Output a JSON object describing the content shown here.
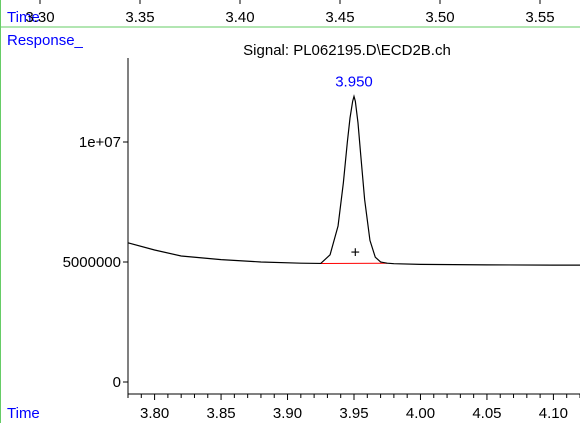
{
  "chart_data": [
    {
      "type": "line",
      "title": "",
      "xlabel": "Time",
      "ticks": [
        "3.30",
        "3.35",
        "3.40",
        "3.45",
        "3.50",
        "3.55"
      ],
      "tick_values": [
        3.3,
        3.35,
        3.4,
        3.45,
        3.5,
        3.55
      ],
      "xlim": [
        3.28,
        3.57
      ]
    },
    {
      "type": "line",
      "title": "Signal: PL062195.D\\ECD2B.ch",
      "ylabel": "Response_",
      "xlabel": "Time",
      "xlim": [
        3.78,
        4.12
      ],
      "ylim": [
        -500000,
        13500000
      ],
      "x_ticks": [
        "3.80",
        "3.85",
        "3.90",
        "3.95",
        "4.00",
        "4.05",
        "4.10"
      ],
      "x_tick_values": [
        3.8,
        3.85,
        3.9,
        3.95,
        4.0,
        4.05,
        4.1
      ],
      "y_ticks": [
        "0",
        "5000000",
        "1e+07"
      ],
      "y_tick_values": [
        0,
        5000000,
        10000000
      ],
      "peak_label": "3.950",
      "peak_label_color": "#0000ff",
      "baseline_color": "#ff0000",
      "grid": false,
      "series": [
        {
          "x": [
            3.78,
            3.8,
            3.82,
            3.85,
            3.88,
            3.91,
            3.925,
            3.932,
            3.938,
            3.942,
            3.945,
            3.947,
            3.949,
            3.95,
            3.951,
            3.953,
            3.955,
            3.958,
            3.962,
            3.966,
            3.97,
            3.975,
            3.98,
            4.0,
            4.05,
            4.1,
            4.12
          ],
          "y": [
            5800000,
            5500000,
            5250000,
            5100000,
            5000000,
            4950000,
            4940000,
            5300000,
            6500000,
            8300000,
            10000000,
            11000000,
            11700000,
            11900000,
            11700000,
            10800000,
            9500000,
            7600000,
            5900000,
            5200000,
            5000000,
            4950000,
            4930000,
            4900000,
            4880000,
            4870000,
            4870000
          ]
        }
      ],
      "baseline": {
        "x": [
          3.925,
          3.975
        ],
        "y": [
          4940000,
          4950000
        ]
      },
      "marker": {
        "symbol": "+",
        "x": 3.951,
        "y": 5400000
      }
    }
  ]
}
